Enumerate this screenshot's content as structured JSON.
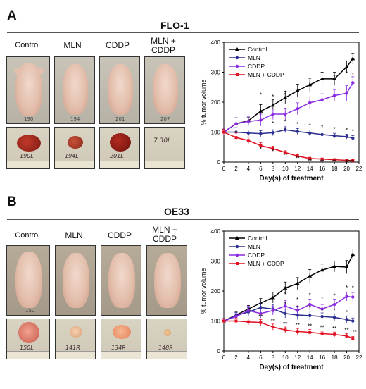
{
  "panels": [
    {
      "letter": "A",
      "title": "FLO-1",
      "groups": [
        "Control",
        "MLN",
        "CDDP",
        "MLN +\nCDDP"
      ],
      "mouse_tags": [
        "190",
        "194",
        "201",
        "207"
      ],
      "tumor_tags": [
        "190L",
        "194L",
        "201L",
        "7 30L"
      ]
    },
    {
      "letter": "B",
      "title": "OE33",
      "groups": [
        "Control",
        "MLN",
        "CDDP",
        "MLN +\nCDDP"
      ],
      "mouse_tags": [
        "150",
        "",
        "",
        ""
      ],
      "tumor_tags": [
        "150L",
        "141R",
        "134R",
        "148R"
      ]
    }
  ],
  "colors": {
    "Control": "#000000",
    "MLN": "#2b2f8f",
    "CDDP": "#8a2be2",
    "MLN + CDDP": "#e01020"
  },
  "chart_data": [
    {
      "type": "line",
      "panel": "A",
      "xlabel": "Day(s) of treatment",
      "ylabel": "% tumor volume",
      "xlim": [
        0,
        22
      ],
      "ylim": [
        0,
        400
      ],
      "xticks": [
        0,
        2,
        4,
        6,
        8,
        10,
        12,
        14,
        16,
        18,
        20,
        22
      ],
      "yticks": [
        0,
        100,
        200,
        300,
        400
      ],
      "legend": "top-left",
      "x": [
        0,
        2,
        4,
        6,
        8,
        10,
        12,
        14,
        16,
        18,
        20,
        21
      ],
      "series": [
        {
          "name": "Control",
          "marker": "triangle",
          "values": [
            100,
            128,
            138,
            170,
            190,
            215,
            238,
            258,
            278,
            278,
            318,
            345
          ],
          "err": [
            10,
            20,
            12,
            22,
            18,
            22,
            22,
            22,
            22,
            22,
            20,
            18
          ]
        },
        {
          "name": "MLN",
          "marker": "circle",
          "values": [
            100,
            100,
            97,
            95,
            98,
            108,
            102,
            97,
            92,
            88,
            85,
            80
          ],
          "err": [
            10,
            15,
            10,
            10,
            10,
            10,
            10,
            10,
            8,
            8,
            8,
            8
          ]
        },
        {
          "name": "CDDP",
          "marker": "circle",
          "values": [
            100,
            128,
            136,
            140,
            160,
            160,
            178,
            198,
            208,
            222,
            230,
            265
          ],
          "err": [
            10,
            20,
            15,
            20,
            18,
            20,
            20,
            20,
            20,
            20,
            25,
            20
          ]
        },
        {
          "name": "MLN + CDDP",
          "marker": "square",
          "values": [
            100,
            82,
            72,
            55,
            45,
            32,
            20,
            12,
            10,
            8,
            6,
            5
          ],
          "err": [
            10,
            15,
            12,
            10,
            8,
            6,
            5,
            4,
            3,
            3,
            3,
            3
          ]
        }
      ],
      "annotations": [
        {
          "x": 6,
          "y": 218,
          "text": "*"
        },
        {
          "x": 8,
          "y": 212,
          "text": "*"
        },
        {
          "x": 10,
          "y": 218,
          "text": "*"
        },
        {
          "x": 12,
          "y": 232,
          "text": "*"
        },
        {
          "x": 14,
          "y": 255,
          "text": "*"
        },
        {
          "x": 16,
          "y": 266,
          "text": "*"
        },
        {
          "x": 18,
          "y": 278,
          "text": "*"
        },
        {
          "x": 20,
          "y": 290,
          "text": "*"
        },
        {
          "x": 21,
          "y": 286,
          "text": "*"
        },
        {
          "x": 8,
          "y": 122,
          "text": "*"
        },
        {
          "x": 10,
          "y": 128,
          "text": "*"
        },
        {
          "x": 12,
          "y": 120,
          "text": "*"
        },
        {
          "x": 14,
          "y": 115,
          "text": "*"
        },
        {
          "x": 16,
          "y": 110,
          "text": "*"
        },
        {
          "x": 18,
          "y": 104,
          "text": "*"
        },
        {
          "x": 20,
          "y": 100,
          "text": "*"
        },
        {
          "x": 21,
          "y": 96,
          "text": "*"
        },
        {
          "x": 6,
          "y": 36,
          "text": "*"
        },
        {
          "x": 8,
          "y": 30,
          "text": "*"
        },
        {
          "x": 10,
          "y": 16,
          "text": "**"
        },
        {
          "x": 12,
          "y": 6,
          "text": "**"
        },
        {
          "x": 14,
          "y": -4,
          "text": "**"
        },
        {
          "x": 16,
          "y": -6,
          "text": "**"
        },
        {
          "x": 18,
          "y": -6,
          "text": "**"
        },
        {
          "x": 20.5,
          "y": -6,
          "text": "****"
        }
      ]
    },
    {
      "type": "line",
      "panel": "B",
      "xlabel": "Day(s) of treatment",
      "ylabel": "% tumor volume",
      "xlim": [
        0,
        22
      ],
      "ylim": [
        0,
        400
      ],
      "xticks": [
        0,
        2,
        4,
        6,
        8,
        10,
        12,
        14,
        16,
        18,
        20,
        22
      ],
      "yticks": [
        0,
        100,
        200,
        300,
        400
      ],
      "legend": "top-left",
      "x": [
        0,
        2,
        4,
        6,
        8,
        10,
        12,
        14,
        16,
        18,
        20,
        21
      ],
      "series": [
        {
          "name": "Control",
          "marker": "triangle",
          "values": [
            100,
            120,
            140,
            160,
            178,
            210,
            225,
            250,
            270,
            282,
            280,
            322
          ],
          "err": [
            8,
            10,
            12,
            15,
            18,
            20,
            20,
            22,
            20,
            18,
            22,
            18
          ]
        },
        {
          "name": "MLN",
          "marker": "circle",
          "values": [
            100,
            118,
            130,
            145,
            140,
            125,
            120,
            118,
            115,
            112,
            105,
            100
          ],
          "err": [
            8,
            10,
            15,
            18,
            15,
            15,
            15,
            15,
            12,
            12,
            12,
            10
          ]
        },
        {
          "name": "CDDP",
          "marker": "circle",
          "values": [
            100,
            115,
            135,
            125,
            135,
            150,
            135,
            155,
            140,
            155,
            182,
            180
          ],
          "err": [
            8,
            10,
            15,
            15,
            15,
            18,
            15,
            18,
            15,
            18,
            15,
            15
          ]
        },
        {
          "name": "MLN + CDDP",
          "marker": "square",
          "values": [
            100,
            100,
            97,
            95,
            80,
            70,
            65,
            62,
            58,
            55,
            50,
            42
          ],
          "err": [
            8,
            10,
            10,
            10,
            10,
            10,
            10,
            10,
            8,
            8,
            8,
            6
          ]
        }
      ],
      "annotations": [
        {
          "x": 8,
          "y": 168,
          "text": "*"
        },
        {
          "x": 10,
          "y": 182,
          "text": "*"
        },
        {
          "x": 12,
          "y": 165,
          "text": "*"
        },
        {
          "x": 14,
          "y": 180,
          "text": "*"
        },
        {
          "x": 16,
          "y": 168,
          "text": "*"
        },
        {
          "x": 18,
          "y": 178,
          "text": "*"
        },
        {
          "x": 20,
          "y": 205,
          "text": "*"
        },
        {
          "x": 21,
          "y": 205,
          "text": "*"
        },
        {
          "x": 10,
          "y": 150,
          "text": "*"
        },
        {
          "x": 12,
          "y": 138,
          "text": "*"
        },
        {
          "x": 14,
          "y": 138,
          "text": "*"
        },
        {
          "x": 16,
          "y": 128,
          "text": "*"
        },
        {
          "x": 18,
          "y": 128,
          "text": "*"
        },
        {
          "x": 20,
          "y": 122,
          "text": "*"
        },
        {
          "x": 6,
          "y": 108,
          "text": "**"
        },
        {
          "x": 8,
          "y": 94,
          "text": "**"
        },
        {
          "x": 10,
          "y": 84,
          "text": "**"
        },
        {
          "x": 12,
          "y": 80,
          "text": "**"
        },
        {
          "x": 14,
          "y": 76,
          "text": "**"
        },
        {
          "x": 16,
          "y": 72,
          "text": "**"
        },
        {
          "x": 18,
          "y": 68,
          "text": "**"
        },
        {
          "x": 20,
          "y": 64,
          "text": "**"
        },
        {
          "x": 21.3,
          "y": 56,
          "text": "**"
        }
      ]
    }
  ]
}
